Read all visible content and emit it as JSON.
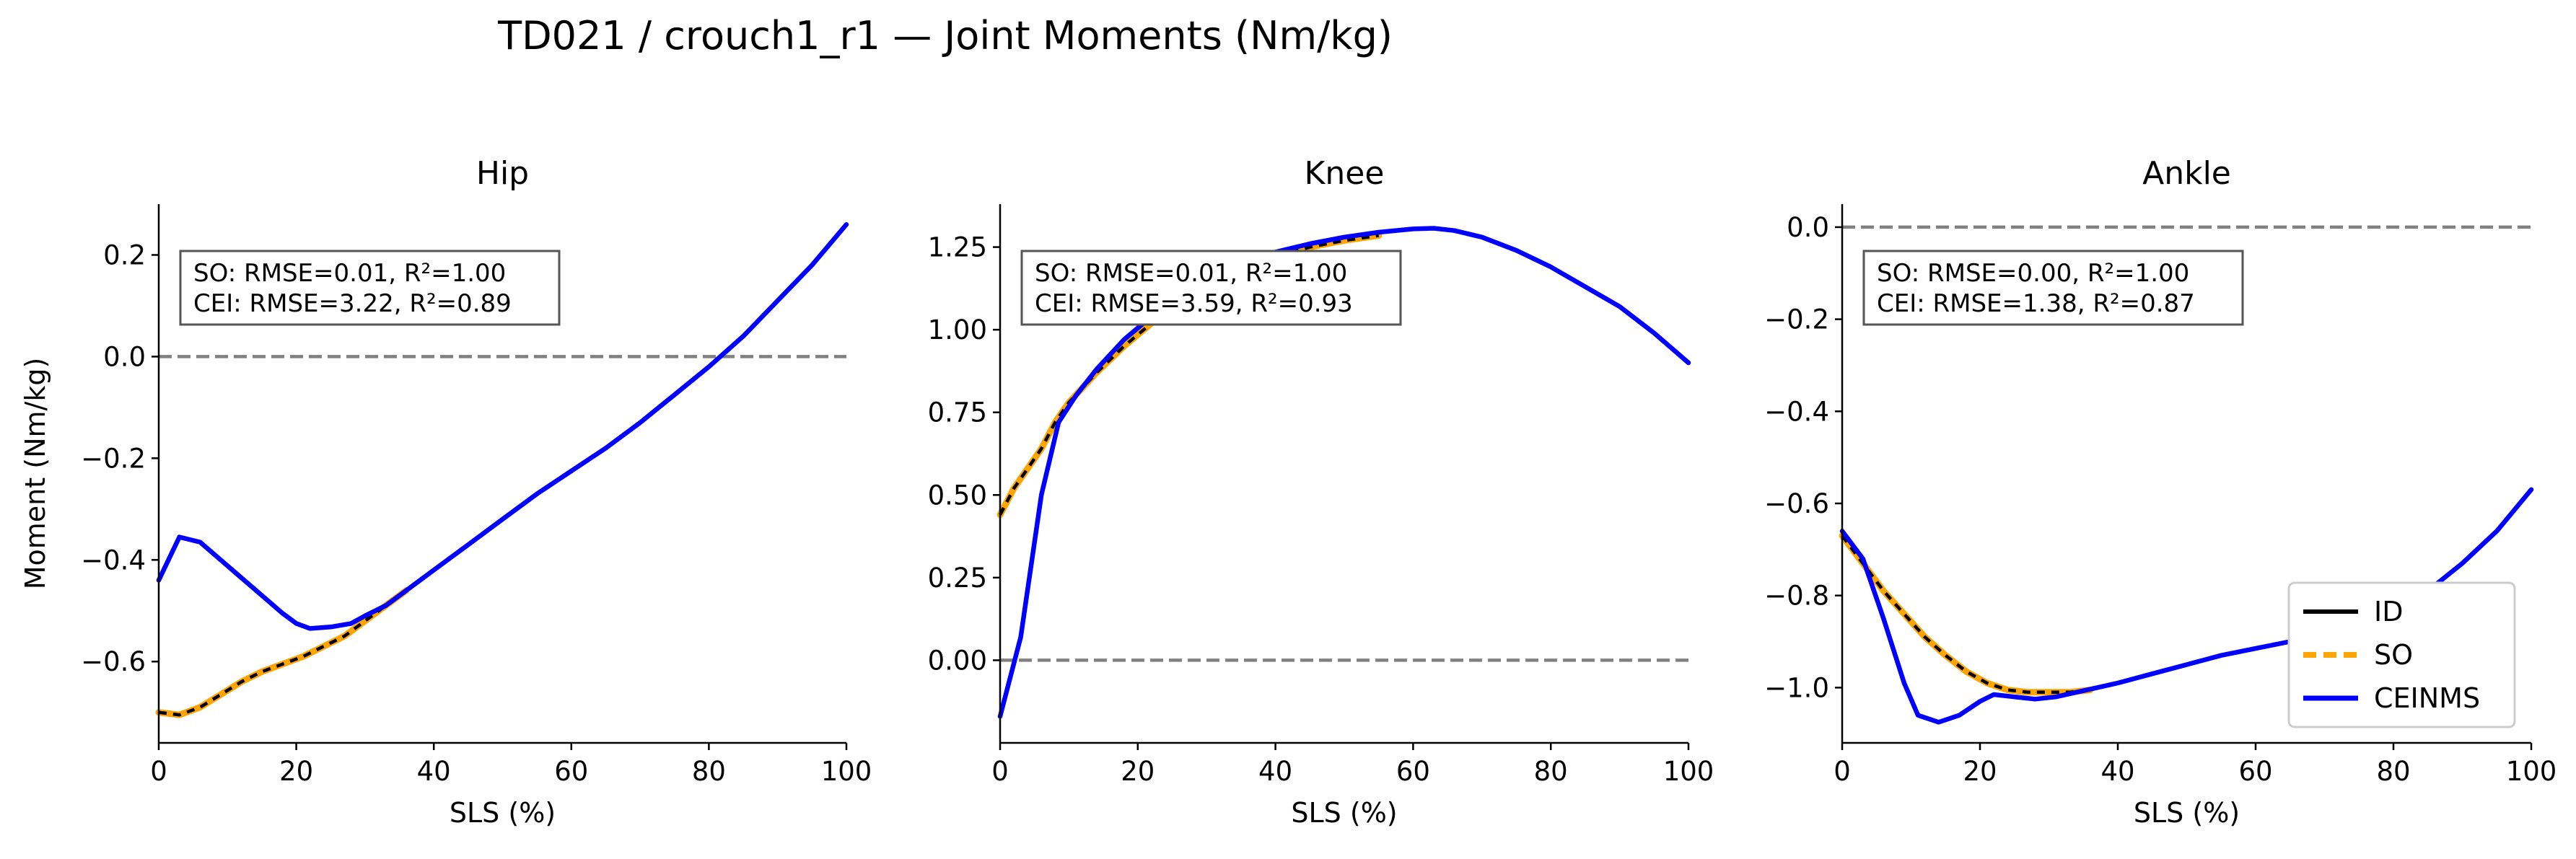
{
  "figure_title": "TD021 / crouch1_r1 — Joint Moments (Nm/kg)",
  "colors": {
    "ID": "#000000",
    "SO": "#ffa500",
    "CEINMS": "#0000ff",
    "zero_line": "#808080"
  },
  "legend_entries": [
    "ID",
    "SO",
    "CEINMS"
  ],
  "chart_data": [
    {
      "type": "line",
      "title": "Hip",
      "xlabel": "SLS (%)",
      "ylabel": "Moment (Nm/kg)",
      "xlim": [
        0,
        100
      ],
      "ylim": [
        -0.76,
        0.3
      ],
      "xticks": [
        0,
        20,
        40,
        60,
        80,
        100
      ],
      "xtick_labels": [
        "0",
        "20",
        "40",
        "60",
        "80",
        "100"
      ],
      "yticks": [
        0.2,
        0.0,
        -0.2,
        -0.4,
        -0.6
      ],
      "ytick_labels": [
        "0.2",
        "0.0",
        "−0.2",
        "−0.4",
        "−0.6"
      ],
      "zero_line": 0,
      "annotation": [
        "SO:  RMSE=0.01, R²=1.00",
        "CEI: RMSE=3.22, R²=0.89"
      ],
      "legend": "none",
      "series": [
        {
          "name": "SO",
          "x": [
            0,
            3,
            6,
            9,
            12,
            15,
            18,
            21,
            24,
            27,
            30,
            33,
            36
          ],
          "y": [
            -0.7,
            -0.705,
            -0.69,
            -0.665,
            -0.64,
            -0.62,
            -0.605,
            -0.59,
            -0.57,
            -0.55,
            -0.52,
            -0.49,
            -0.46
          ]
        },
        {
          "name": "ID",
          "x": [
            0,
            3,
            6,
            9,
            12,
            15,
            18,
            21,
            24,
            27,
            30,
            33,
            36
          ],
          "y": [
            -0.7,
            -0.705,
            -0.69,
            -0.665,
            -0.64,
            -0.62,
            -0.605,
            -0.59,
            -0.57,
            -0.55,
            -0.52,
            -0.49,
            -0.46
          ]
        },
        {
          "name": "CEINMS",
          "x": [
            0,
            3,
            6,
            9,
            12,
            15,
            18,
            20,
            22,
            25,
            28,
            30,
            33,
            36,
            40,
            45,
            50,
            55,
            60,
            65,
            70,
            75,
            80,
            85,
            90,
            95,
            100
          ],
          "y": [
            -0.44,
            -0.355,
            -0.365,
            -0.4,
            -0.435,
            -0.47,
            -0.505,
            -0.525,
            -0.535,
            -0.532,
            -0.525,
            -0.51,
            -0.49,
            -0.46,
            -0.42,
            -0.37,
            -0.32,
            -0.27,
            -0.225,
            -0.18,
            -0.13,
            -0.075,
            -0.02,
            0.04,
            0.11,
            0.18,
            0.26
          ]
        }
      ]
    },
    {
      "type": "line",
      "title": "Knee",
      "xlabel": "SLS (%)",
      "ylabel": "",
      "xlim": [
        0,
        100
      ],
      "ylim": [
        -0.25,
        1.38
      ],
      "xticks": [
        0,
        20,
        40,
        60,
        80,
        100
      ],
      "xtick_labels": [
        "0",
        "20",
        "40",
        "60",
        "80",
        "100"
      ],
      "yticks": [
        1.25,
        1.0,
        0.75,
        0.5,
        0.25,
        0.0
      ],
      "ytick_labels": [
        "1.25",
        "1.00",
        "0.75",
        "0.50",
        "0.25",
        "0.00"
      ],
      "zero_line": 0,
      "annotation": [
        "SO:  RMSE=0.01, R²=1.00",
        "CEI: RMSE=3.59, R²=0.93"
      ],
      "legend": "none",
      "series": [
        {
          "name": "SO",
          "x": [
            0,
            2,
            4,
            6,
            8,
            10,
            14,
            18,
            22,
            26,
            30,
            35,
            40,
            45,
            50,
            55
          ],
          "y": [
            0.44,
            0.52,
            0.58,
            0.64,
            0.72,
            0.78,
            0.87,
            0.95,
            1.02,
            1.08,
            1.13,
            1.18,
            1.22,
            1.25,
            1.27,
            1.285
          ]
        },
        {
          "name": "ID",
          "x": [
            0,
            2,
            4,
            6,
            8,
            10,
            14,
            18,
            22,
            26,
            30,
            35,
            40,
            45,
            50,
            55
          ],
          "y": [
            0.44,
            0.52,
            0.58,
            0.64,
            0.72,
            0.78,
            0.87,
            0.95,
            1.02,
            1.08,
            1.13,
            1.18,
            1.22,
            1.25,
            1.27,
            1.285
          ]
        },
        {
          "name": "CEINMS",
          "x": [
            0,
            3,
            6,
            8.5,
            11,
            14,
            18,
            22,
            26,
            30,
            35,
            40,
            45,
            50,
            55,
            60,
            63,
            66,
            70,
            75,
            80,
            85,
            90,
            95,
            100
          ],
          "y": [
            -0.17,
            0.07,
            0.5,
            0.72,
            0.8,
            0.88,
            0.97,
            1.04,
            1.1,
            1.15,
            1.2,
            1.235,
            1.26,
            1.28,
            1.295,
            1.305,
            1.307,
            1.3,
            1.28,
            1.24,
            1.19,
            1.13,
            1.07,
            0.99,
            0.9
          ]
        }
      ]
    },
    {
      "type": "line",
      "title": "Ankle",
      "xlabel": "SLS (%)",
      "ylabel": "",
      "xlim": [
        0,
        100
      ],
      "ylim": [
        -1.12,
        0.05
      ],
      "xticks": [
        0,
        20,
        40,
        60,
        80,
        100
      ],
      "xtick_labels": [
        "0",
        "20",
        "40",
        "60",
        "80",
        "100"
      ],
      "yticks": [
        0.0,
        -0.2,
        -0.4,
        -0.6,
        -0.8,
        -1.0
      ],
      "ytick_labels": [
        "0.0",
        "−0.2",
        "−0.4",
        "−0.6",
        "−0.8",
        "−1.0"
      ],
      "zero_line": 0,
      "annotation": [
        "SO:  RMSE=0.00, R²=1.00",
        "CEI: RMSE=1.38, R²=0.87"
      ],
      "legend": "lower right",
      "series": [
        {
          "name": "SO",
          "x": [
            0,
            3,
            6,
            9,
            12,
            15,
            18,
            21,
            24,
            27,
            30,
            33,
            36
          ],
          "y": [
            -0.67,
            -0.73,
            -0.79,
            -0.84,
            -0.89,
            -0.93,
            -0.965,
            -0.99,
            -1.005,
            -1.01,
            -1.01,
            -1.01,
            -1.005
          ]
        },
        {
          "name": "ID",
          "x": [
            0,
            3,
            6,
            9,
            12,
            15,
            18,
            21,
            24,
            27,
            30,
            33,
            36
          ],
          "y": [
            -0.67,
            -0.73,
            -0.79,
            -0.84,
            -0.89,
            -0.93,
            -0.965,
            -0.99,
            -1.005,
            -1.01,
            -1.01,
            -1.01,
            -1.005
          ]
        },
        {
          "name": "CEINMS",
          "x": [
            0,
            3,
            6,
            9,
            11,
            14,
            17,
            20,
            22,
            25,
            28,
            31,
            34,
            37,
            40,
            45,
            50,
            55,
            60,
            65,
            70,
            75,
            80,
            85,
            90,
            95,
            100
          ],
          "y": [
            -0.66,
            -0.72,
            -0.85,
            -0.99,
            -1.06,
            -1.075,
            -1.06,
            -1.03,
            -1.015,
            -1.02,
            -1.025,
            -1.02,
            -1.01,
            -1.0,
            -0.99,
            -0.97,
            -0.95,
            -0.93,
            -0.915,
            -0.9,
            -0.88,
            -0.86,
            -0.83,
            -0.79,
            -0.73,
            -0.66,
            -0.57
          ]
        }
      ]
    }
  ]
}
